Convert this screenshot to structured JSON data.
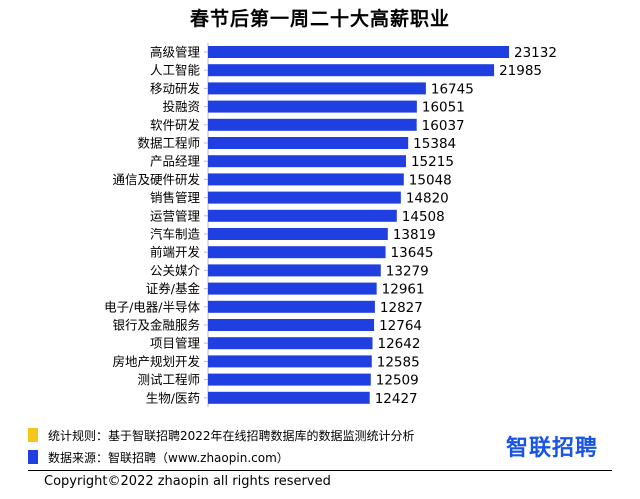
{
  "chart_data": {
    "type": "bar",
    "orientation": "horizontal",
    "title": "春节后第一周二十大高薪职业",
    "categories": [
      "高级管理",
      "人工智能",
      "移动研发",
      "投融资",
      "软件研发",
      "数据工程师",
      "产品经理",
      "通信及硬件研发",
      "销售管理",
      "运营管理",
      "汽车制造",
      "前端开发",
      "公关媒介",
      "证券/基金",
      "电子/电器/半导体",
      "银行及金融服务",
      "项目管理",
      "房地产规划开发",
      "测试工程师",
      "生物/医药"
    ],
    "values": [
      23132,
      21985,
      16745,
      16051,
      16037,
      15384,
      15215,
      15048,
      14820,
      14508,
      13819,
      13645,
      13279,
      12961,
      12827,
      12764,
      12642,
      12585,
      12509,
      12427
    ],
    "xlim": [
      0,
      23132
    ],
    "grid": false,
    "bar_color": "#1f3fe0"
  },
  "legend": {
    "rule_text": "统计规则：基于智联招聘2022年在线招聘数据库的数据监测统计分析",
    "rule_color": "#f5c518",
    "source_text": "数据来源：智联招聘（www.zhaopin.com）",
    "source_color": "#1f3fe0"
  },
  "brand": {
    "logo_text": "智联招聘"
  },
  "footer": {
    "copyright": "Copyright©2022 zhaopin all rights reserved"
  }
}
